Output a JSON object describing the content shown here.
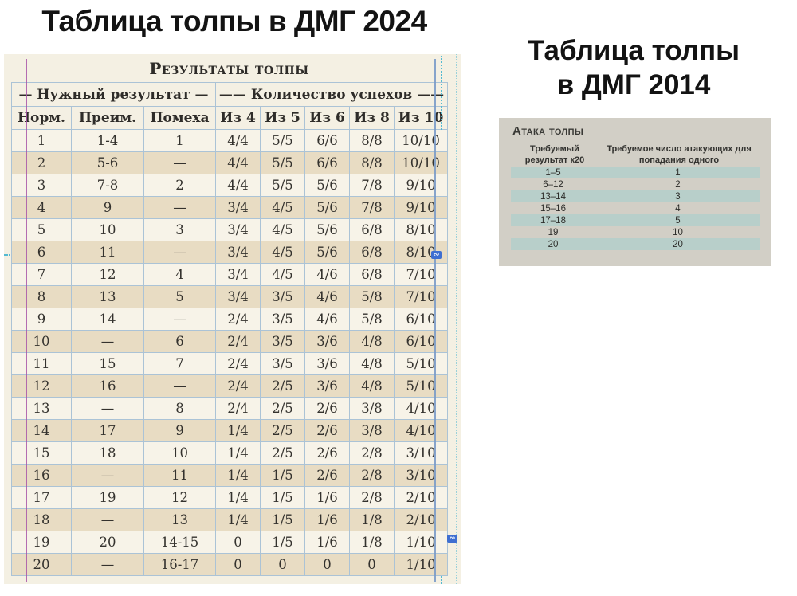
{
  "left": {
    "title": "Таблица толпы в ДМГ 2024",
    "table_title": "Результаты толпы",
    "group_headers": [
      "— Нужный результат —",
      "—— Количество успехов ——"
    ],
    "columns": [
      "Норм.",
      "Преим.",
      "Помеха",
      "Из 4",
      "Из 5",
      "Из 6",
      "Из 8",
      "Из 10"
    ],
    "rows": [
      [
        "1",
        "1-4",
        "1",
        "4/4",
        "5/5",
        "6/6",
        "8/8",
        "10/10"
      ],
      [
        "2",
        "5-6",
        "—",
        "4/4",
        "5/5",
        "6/6",
        "8/8",
        "10/10"
      ],
      [
        "3",
        "7-8",
        "2",
        "4/4",
        "5/5",
        "5/6",
        "7/8",
        "9/10"
      ],
      [
        "4",
        "9",
        "—",
        "3/4",
        "4/5",
        "5/6",
        "7/8",
        "9/10"
      ],
      [
        "5",
        "10",
        "3",
        "3/4",
        "4/5",
        "5/6",
        "6/8",
        "8/10"
      ],
      [
        "6",
        "11",
        "—",
        "3/4",
        "4/5",
        "5/6",
        "6/8",
        "8/10"
      ],
      [
        "7",
        "12",
        "4",
        "3/4",
        "4/5",
        "4/6",
        "6/8",
        "7/10"
      ],
      [
        "8",
        "13",
        "5",
        "3/4",
        "3/5",
        "4/6",
        "5/8",
        "7/10"
      ],
      [
        "9",
        "14",
        "—",
        "2/4",
        "3/5",
        "4/6",
        "5/8",
        "6/10"
      ],
      [
        "10",
        "—",
        "6",
        "2/4",
        "3/5",
        "3/6",
        "4/8",
        "6/10"
      ],
      [
        "11",
        "15",
        "7",
        "2/4",
        "3/5",
        "3/6",
        "4/8",
        "5/10"
      ],
      [
        "12",
        "16",
        "—",
        "2/4",
        "2/5",
        "3/6",
        "4/8",
        "5/10"
      ],
      [
        "13",
        "—",
        "8",
        "2/4",
        "2/5",
        "2/6",
        "3/8",
        "4/10"
      ],
      [
        "14",
        "17",
        "9",
        "1/4",
        "2/5",
        "2/6",
        "3/8",
        "4/10"
      ],
      [
        "15",
        "18",
        "10",
        "1/4",
        "2/5",
        "2/6",
        "2/8",
        "3/10"
      ],
      [
        "16",
        "—",
        "11",
        "1/4",
        "1/5",
        "2/6",
        "2/8",
        "3/10"
      ],
      [
        "17",
        "19",
        "12",
        "1/4",
        "1/5",
        "1/6",
        "2/8",
        "2/10"
      ],
      [
        "18",
        "—",
        "13",
        "1/4",
        "1/5",
        "1/6",
        "1/8",
        "2/10"
      ],
      [
        "19",
        "20",
        "14-15",
        "0",
        "1/5",
        "1/6",
        "1/8",
        "1/10"
      ],
      [
        "20",
        "—",
        "16-17",
        "0",
        "0",
        "0",
        "0",
        "1/10"
      ]
    ]
  },
  "right": {
    "title_line1": "Таблица толпы",
    "title_line2": "в ДМГ 2014",
    "table_title": "Атака толпы",
    "columns": [
      "Требуемый результат к20",
      "Требуемое число атакующих для попадания одного"
    ],
    "rows": [
      [
        "1–5",
        "1"
      ],
      [
        "6–12",
        "2"
      ],
      [
        "13–14",
        "3"
      ],
      [
        "15–16",
        "4"
      ],
      [
        "17–18",
        "5"
      ],
      [
        "19",
        "10"
      ],
      [
        "20",
        "20"
      ]
    ]
  },
  "artifacts": {
    "link_icon_glyph": "∾"
  },
  "colors": {
    "parchment": "#f4f0e3",
    "row-cream": "#f7f3e8",
    "row-tan": "#e8dcc3",
    "grid-blue": "#abc3d6",
    "text-dark": "#34322e",
    "scan2014-bg": "#d2cfc6",
    "band-teal": "#b8cfca",
    "annotation-purple": "#a855a8",
    "annotation-blue": "#7b9bc8",
    "dotted-cyan": "#53b9d1",
    "link-blue": "#3f6fd1"
  }
}
